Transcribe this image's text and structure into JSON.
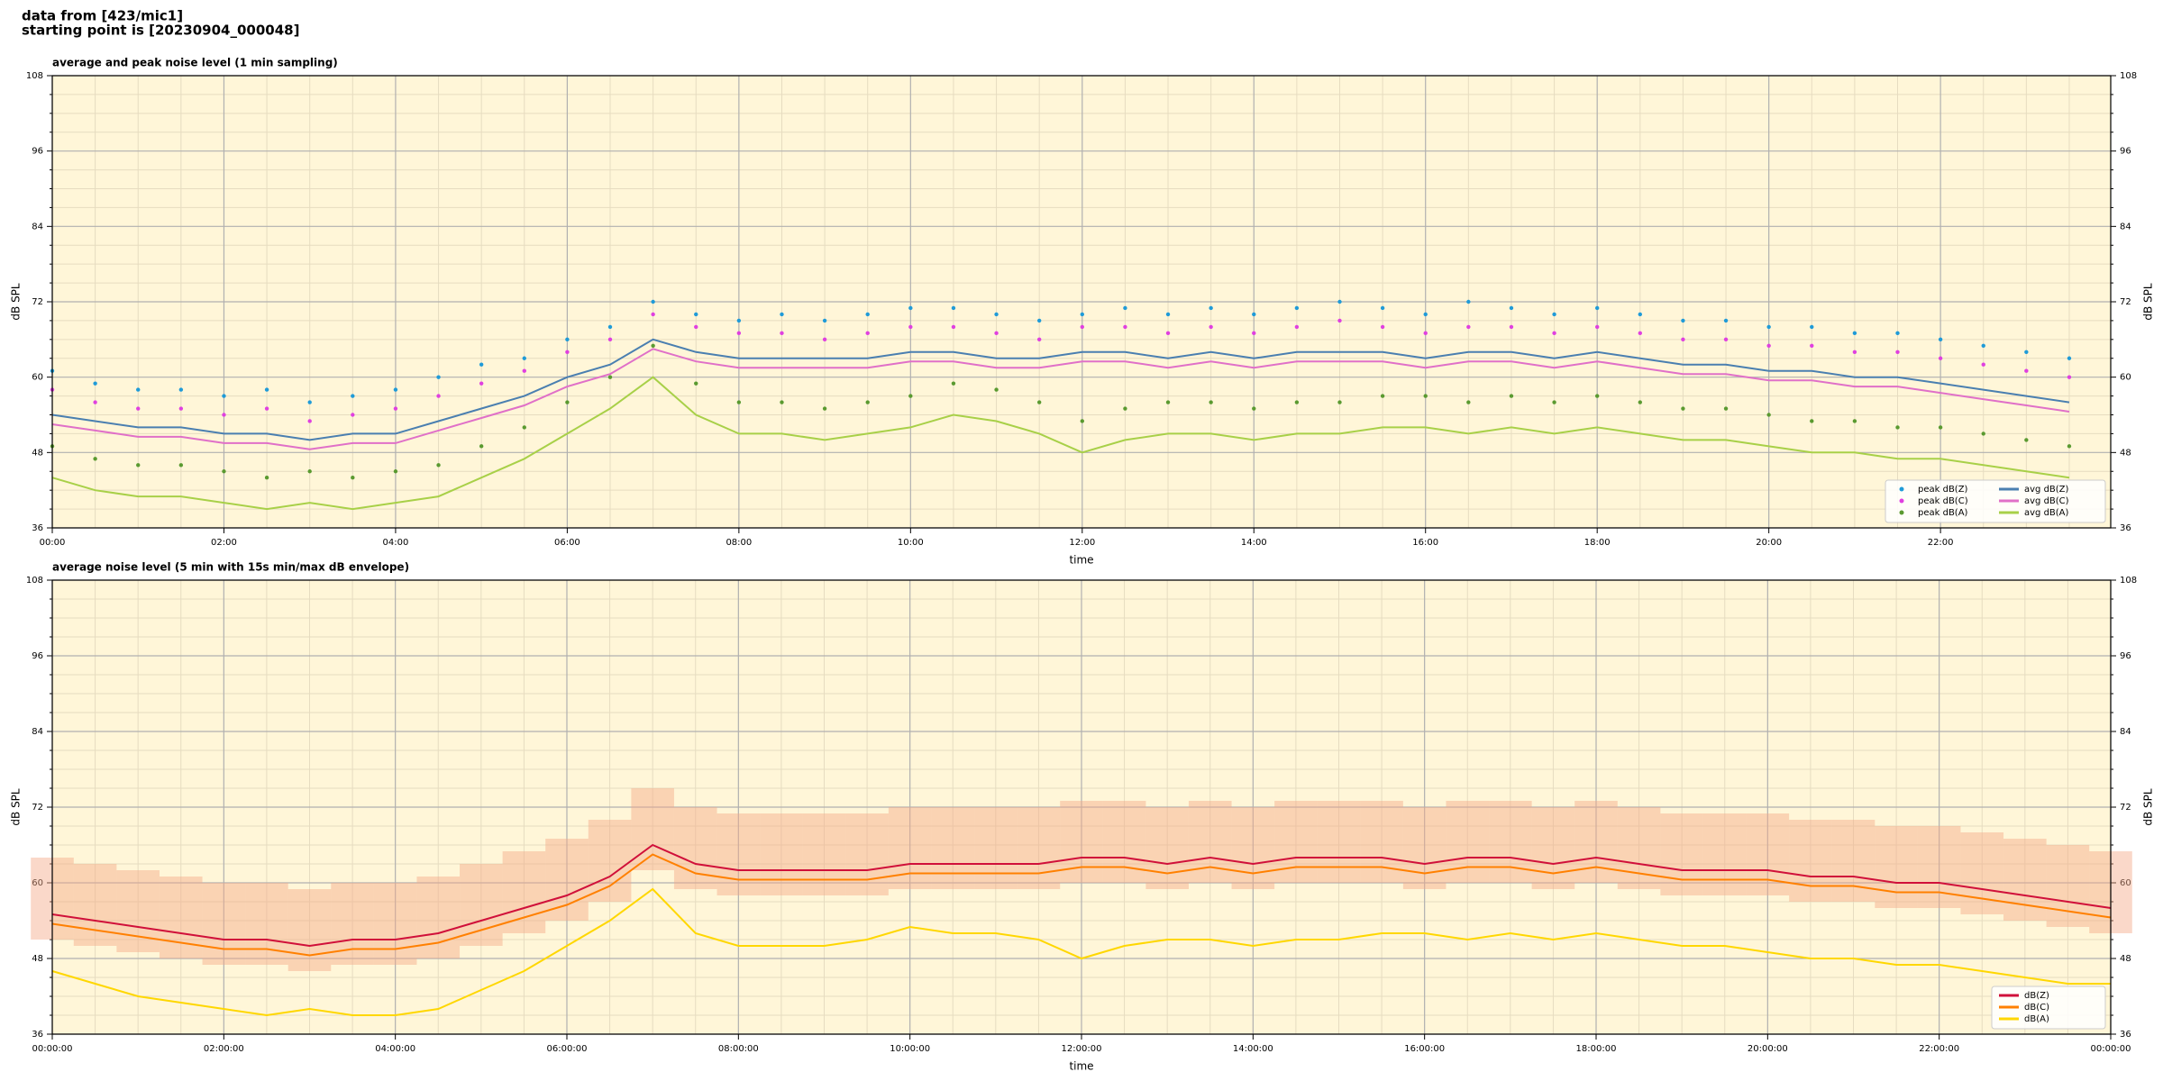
{
  "header": {
    "line1": "data from [423/mic1]",
    "line2": "starting point is [20230904_000048]"
  },
  "chart_data": [
    {
      "type": "line",
      "title": "average and peak noise level (1 min sampling)",
      "ylabel": "dB SPL",
      "xlabel": "time",
      "x": [
        0,
        30,
        60,
        90,
        120,
        150,
        180,
        210,
        240,
        270,
        300,
        330,
        360,
        390,
        420,
        450,
        480,
        510,
        540,
        570,
        600,
        630,
        660,
        690,
        720,
        750,
        780,
        810,
        840,
        870,
        900,
        930,
        960,
        990,
        1020,
        1050,
        1080,
        1110,
        1140,
        1170,
        1200,
        1230,
        1260,
        1290,
        1320,
        1350,
        1380,
        1410
      ],
      "xlim": [
        0,
        1439
      ],
      "xticks": [
        {
          "value": 0,
          "label": "00:00"
        },
        {
          "value": 120,
          "label": "02:00"
        },
        {
          "value": 240,
          "label": "04:00"
        },
        {
          "value": 360,
          "label": "06:00"
        },
        {
          "value": 480,
          "label": "08:00"
        },
        {
          "value": 600,
          "label": "10:00"
        },
        {
          "value": 720,
          "label": "12:00"
        },
        {
          "value": 840,
          "label": "14:00"
        },
        {
          "value": 960,
          "label": "16:00"
        },
        {
          "value": 1080,
          "label": "18:00"
        },
        {
          "value": 1200,
          "label": "20:00"
        },
        {
          "value": 1320,
          "label": "22:00"
        }
      ],
      "xminorticks": [
        30,
        60,
        90,
        150,
        180,
        210,
        270,
        300,
        330,
        390,
        420,
        450,
        510,
        540,
        570,
        630,
        660,
        690,
        750,
        780,
        810,
        870,
        900,
        930,
        990,
        1020,
        1050,
        1110,
        1140,
        1170,
        1230,
        1260,
        1290,
        1350,
        1380,
        1410
      ],
      "ylim": [
        36,
        108
      ],
      "yticks": [
        36,
        48,
        60,
        72,
        84,
        96,
        108
      ],
      "yminorticks": [
        39,
        42,
        45,
        51,
        54,
        57,
        63,
        66,
        69,
        75,
        78,
        81,
        87,
        90,
        93,
        99,
        102,
        105
      ],
      "grid": true,
      "legend": "lower right",
      "legend_columns": 2,
      "series": [
        {
          "name": "peak dB(Z)",
          "style": "points",
          "color": "#1f9bd8",
          "values": [
            61,
            59,
            58,
            58,
            57,
            58,
            56,
            57,
            58,
            60,
            62,
            63,
            66,
            68,
            72,
            70,
            69,
            70,
            69,
            70,
            71,
            71,
            70,
            69,
            70,
            71,
            70,
            71,
            70,
            71,
            72,
            71,
            70,
            72,
            71,
            70,
            71,
            70,
            69,
            69,
            68,
            68,
            67,
            67,
            66,
            65,
            64,
            63
          ]
        },
        {
          "name": "peak dB(C)",
          "style": "points",
          "color": "#e040e0",
          "values": [
            58,
            56,
            55,
            55,
            54,
            55,
            53,
            54,
            55,
            57,
            59,
            61,
            64,
            66,
            70,
            68,
            67,
            67,
            66,
            67,
            68,
            68,
            67,
            66,
            68,
            68,
            67,
            68,
            67,
            68,
            69,
            68,
            67,
            68,
            68,
            67,
            68,
            67,
            66,
            66,
            65,
            65,
            64,
            64,
            63,
            62,
            61,
            60
          ]
        },
        {
          "name": "peak dB(A)",
          "style": "points",
          "color": "#5a9a30",
          "values": [
            49,
            47,
            46,
            46,
            45,
            44,
            45,
            44,
            45,
            46,
            49,
            52,
            56,
            60,
            65,
            59,
            56,
            56,
            55,
            56,
            57,
            59,
            58,
            56,
            53,
            55,
            56,
            56,
            55,
            56,
            56,
            57,
            57,
            56,
            57,
            56,
            57,
            56,
            55,
            55,
            54,
            53,
            53,
            52,
            52,
            51,
            50,
            49
          ]
        },
        {
          "name": "avg dB(Z)",
          "style": "line",
          "color": "#4a7fb0",
          "values": [
            54,
            53,
            52,
            52,
            51,
            51,
            50,
            51,
            51,
            53,
            55,
            57,
            60,
            62,
            66,
            64,
            63,
            63,
            63,
            63,
            64,
            64,
            63,
            63,
            64,
            64,
            63,
            64,
            63,
            64,
            64,
            64,
            63,
            64,
            64,
            63,
            64,
            63,
            62,
            62,
            61,
            61,
            60,
            60,
            59,
            58,
            57,
            56
          ]
        },
        {
          "name": "avg dB(C)",
          "style": "line",
          "color": "#e070c8",
          "values": [
            52.5,
            51.5,
            50.5,
            50.5,
            49.5,
            49.5,
            48.5,
            49.5,
            49.5,
            51.5,
            53.5,
            55.5,
            58.5,
            60.5,
            64.5,
            62.5,
            61.5,
            61.5,
            61.5,
            61.5,
            62.5,
            62.5,
            61.5,
            61.5,
            62.5,
            62.5,
            61.5,
            62.5,
            61.5,
            62.5,
            62.5,
            62.5,
            61.5,
            62.5,
            62.5,
            61.5,
            62.5,
            61.5,
            60.5,
            60.5,
            59.5,
            59.5,
            58.5,
            58.5,
            57.5,
            56.5,
            55.5,
            54.5
          ]
        },
        {
          "name": "avg dB(A)",
          "style": "line",
          "color": "#a8d048",
          "values": [
            44,
            42,
            41,
            41,
            40,
            39,
            40,
            39,
            40,
            41,
            44,
            47,
            51,
            55,
            60,
            54,
            51,
            51,
            50,
            51,
            52,
            54,
            53,
            51,
            48,
            50,
            51,
            51,
            50,
            51,
            51,
            52,
            52,
            51,
            52,
            51,
            52,
            51,
            50,
            50,
            49,
            48,
            48,
            47,
            47,
            46,
            45,
            44
          ]
        }
      ]
    },
    {
      "type": "line",
      "title": "average noise level (5 min with 15s min/max dB envelope)",
      "ylabel": "dB SPL",
      "xlabel": "time",
      "x": [
        0,
        30,
        60,
        90,
        120,
        150,
        180,
        210,
        240,
        270,
        300,
        330,
        360,
        390,
        420,
        450,
        480,
        510,
        540,
        570,
        600,
        630,
        660,
        690,
        720,
        750,
        780,
        810,
        840,
        870,
        900,
        930,
        960,
        990,
        1020,
        1050,
        1080,
        1110,
        1140,
        1170,
        1200,
        1230,
        1260,
        1290,
        1320,
        1350,
        1380,
        1410,
        1440
      ],
      "xlim": [
        0,
        1440
      ],
      "xticks": [
        {
          "value": 0,
          "label": "00:00:00"
        },
        {
          "value": 120,
          "label": "02:00:00"
        },
        {
          "value": 240,
          "label": "04:00:00"
        },
        {
          "value": 360,
          "label": "06:00:00"
        },
        {
          "value": 480,
          "label": "08:00:00"
        },
        {
          "value": 600,
          "label": "10:00:00"
        },
        {
          "value": 720,
          "label": "12:00:00"
        },
        {
          "value": 840,
          "label": "14:00:00"
        },
        {
          "value": 960,
          "label": "16:00:00"
        },
        {
          "value": 1080,
          "label": "18:00:00"
        },
        {
          "value": 1200,
          "label": "20:00:00"
        },
        {
          "value": 1320,
          "label": "22:00:00"
        },
        {
          "value": 1440,
          "label": "00:00:00"
        }
      ],
      "xminorticks": [
        30,
        60,
        90,
        150,
        180,
        210,
        270,
        300,
        330,
        390,
        420,
        450,
        510,
        540,
        570,
        630,
        660,
        690,
        750,
        780,
        810,
        870,
        900,
        930,
        990,
        1020,
        1050,
        1110,
        1140,
        1170,
        1230,
        1260,
        1290,
        1350,
        1380,
        1410
      ],
      "ylim": [
        36,
        108
      ],
      "yticks": [
        36,
        48,
        60,
        72,
        84,
        96,
        108
      ],
      "yminorticks": [
        39,
        42,
        45,
        51,
        54,
        57,
        63,
        66,
        69,
        75,
        78,
        81,
        87,
        90,
        93,
        99,
        102,
        105
      ],
      "grid": true,
      "legend": "lower right",
      "legend_columns": 1,
      "band": {
        "color": "#f4a888",
        "min": [
          51,
          50,
          49,
          48,
          47,
          47,
          46,
          47,
          47,
          48,
          50,
          52,
          54,
          57,
          62,
          59,
          58,
          58,
          58,
          58,
          59,
          59,
          59,
          59,
          60,
          60,
          59,
          60,
          59,
          60,
          60,
          60,
          59,
          60,
          60,
          59,
          60,
          59,
          58,
          58,
          58,
          57,
          57,
          56,
          56,
          55,
          54,
          53,
          52
        ],
        "max": [
          64,
          63,
          62,
          61,
          60,
          60,
          59,
          60,
          60,
          61,
          63,
          65,
          67,
          70,
          75,
          72,
          71,
          71,
          71,
          71,
          72,
          72,
          72,
          72,
          73,
          73,
          72,
          73,
          72,
          73,
          73,
          73,
          72,
          73,
          73,
          72,
          73,
          72,
          71,
          71,
          71,
          70,
          70,
          69,
          69,
          68,
          67,
          66,
          65
        ]
      },
      "series": [
        {
          "name": "dB(Z)",
          "style": "line",
          "color": "#d0103a",
          "values": [
            55,
            54,
            53,
            52,
            51,
            51,
            50,
            51,
            51,
            52,
            54,
            56,
            58,
            61,
            66,
            63,
            62,
            62,
            62,
            62,
            63,
            63,
            63,
            63,
            64,
            64,
            63,
            64,
            63,
            64,
            64,
            64,
            63,
            64,
            64,
            63,
            64,
            63,
            62,
            62,
            62,
            61,
            61,
            60,
            60,
            59,
            58,
            57,
            56
          ]
        },
        {
          "name": "dB(C)",
          "style": "line",
          "color": "#ff8000",
          "values": [
            53.5,
            52.5,
            51.5,
            50.5,
            49.5,
            49.5,
            48.5,
            49.5,
            49.5,
            50.5,
            52.5,
            54.5,
            56.5,
            59.5,
            64.5,
            61.5,
            60.5,
            60.5,
            60.5,
            60.5,
            61.5,
            61.5,
            61.5,
            61.5,
            62.5,
            62.5,
            61.5,
            62.5,
            61.5,
            62.5,
            62.5,
            62.5,
            61.5,
            62.5,
            62.5,
            61.5,
            62.5,
            61.5,
            60.5,
            60.5,
            60.5,
            59.5,
            59.5,
            58.5,
            58.5,
            57.5,
            56.5,
            55.5,
            54.5
          ]
        },
        {
          "name": "dB(A)",
          "style": "line",
          "color": "#ffd700",
          "values": [
            46,
            44,
            42,
            41,
            40,
            39,
            40,
            39,
            39,
            40,
            43,
            46,
            50,
            54,
            59,
            52,
            50,
            50,
            50,
            51,
            53,
            52,
            52,
            51,
            48,
            50,
            51,
            51,
            50,
            51,
            51,
            52,
            52,
            51,
            52,
            51,
            52,
            51,
            50,
            50,
            49,
            48,
            48,
            47,
            47,
            46,
            45,
            44,
            44
          ]
        }
      ]
    }
  ]
}
